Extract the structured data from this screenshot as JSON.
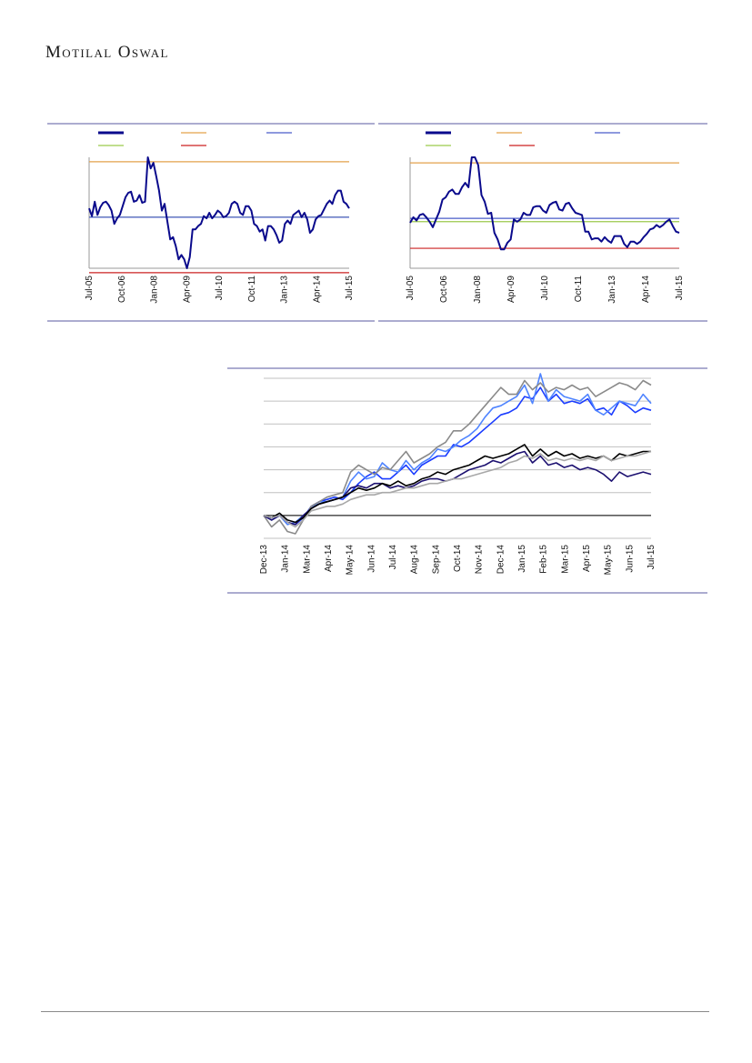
{
  "header": {
    "brand": "Motilal Oswal"
  },
  "colors": {
    "navy": "#0a0a8c",
    "orange": "#e3a24b",
    "blue_line": "#4a5cc9",
    "green": "#9bc94b",
    "red": "#cc2222",
    "rule": "#5a5aa0",
    "black": "#000000",
    "dark_navy": "#1c1070",
    "bright_blue": "#1a3cff",
    "light_blue": "#4f84ff",
    "gray": "#8a8a8a",
    "light_gray": "#a8a8a8",
    "grid": "#c0c0c0"
  },
  "chart_data": [
    {
      "type": "line",
      "x_ticks": [
        "Jul-05",
        "Oct-06",
        "Jan-08",
        "Apr-09",
        "Jul-10",
        "Oct-11",
        "Jan-13",
        "Apr-14",
        "Jul-15"
      ],
      "ylim": [
        0,
        100
      ],
      "legend": [
        {
          "color_key": "navy",
          "style": "thick"
        },
        {
          "color_key": "orange",
          "style": "thin"
        },
        {
          "color_key": "blue_line",
          "style": "thin"
        },
        {
          "color_key": "green",
          "style": "thin"
        },
        {
          "color_key": "red",
          "style": "thin"
        }
      ],
      "reference_lines": [
        {
          "color_key": "orange",
          "value": 96
        },
        {
          "color_key": "green",
          "value": 46
        },
        {
          "color_key": "blue_line",
          "value": 46
        },
        {
          "color_key": "red",
          "value": -4
        }
      ],
      "series": [
        {
          "color_key": "navy",
          "values": [
            54,
            47,
            60,
            48,
            55,
            59,
            60,
            57,
            52,
            40,
            45,
            48,
            56,
            64,
            68,
            69,
            60,
            61,
            66,
            59,
            60,
            100,
            90,
            95,
            83,
            70,
            52,
            58,
            42,
            26,
            28,
            20,
            8,
            12,
            8,
            0,
            10,
            35,
            35,
            38,
            40,
            47,
            45,
            50,
            45,
            48,
            52,
            50,
            46,
            47,
            50,
            58,
            60,
            58,
            50,
            48,
            56,
            56,
            52,
            40,
            38,
            33,
            35,
            25,
            38,
            38,
            35,
            30,
            23,
            25,
            40,
            43,
            40,
            48,
            50,
            52,
            46,
            50,
            44,
            32,
            35,
            44,
            47,
            48,
            53,
            58,
            61,
            58,
            66,
            70,
            70,
            60,
            58,
            54
          ]
        }
      ]
    },
    {
      "type": "line",
      "x_ticks": [
        "Jul-05",
        "Oct-06",
        "Jan-08",
        "Apr-09",
        "Jul-10",
        "Oct-11",
        "Jan-13",
        "Apr-14",
        "Jul-15"
      ],
      "ylim": [
        0,
        100
      ],
      "legend": [
        {
          "color_key": "navy",
          "style": "thick"
        },
        {
          "color_key": "orange",
          "style": "thin"
        },
        {
          "color_key": "blue_line",
          "style": "thin"
        },
        {
          "color_key": "green",
          "style": "thin"
        },
        {
          "color_key": "red",
          "style": "thin"
        }
      ],
      "reference_lines": [
        {
          "color_key": "orange",
          "value": 95
        },
        {
          "color_key": "blue_line",
          "value": 45
        },
        {
          "color_key": "green",
          "value": 42
        },
        {
          "color_key": "red",
          "value": 18
        }
      ],
      "series": [
        {
          "color_key": "navy",
          "values": [
            41,
            46,
            43,
            48,
            49,
            46,
            42,
            37,
            44,
            51,
            62,
            64,
            69,
            71,
            67,
            67,
            73,
            77,
            73,
            100,
            100,
            93,
            66,
            60,
            49,
            50,
            32,
            26,
            17,
            17,
            23,
            26,
            44,
            42,
            44,
            50,
            48,
            48,
            55,
            56,
            56,
            52,
            50,
            57,
            59,
            60,
            53,
            52,
            58,
            59,
            54,
            50,
            49,
            48,
            33,
            33,
            26,
            27,
            27,
            24,
            28,
            25,
            23,
            29,
            29,
            29,
            22,
            19,
            24,
            24,
            22,
            24,
            28,
            31,
            35,
            36,
            39,
            37,
            39,
            42,
            44,
            38,
            33,
            32
          ]
        }
      ]
    },
    {
      "type": "line",
      "x_ticks": [
        "Dec-13",
        "Jan-14",
        "Mar-14",
        "Apr-14",
        "May-14",
        "Jun-14",
        "Jul-14",
        "Aug-14",
        "Sep-14",
        "Oct-14",
        "Nov-14",
        "Dec-14",
        "Jan-15",
        "Feb-15",
        "Mar-15",
        "Apr-15",
        "May-15",
        "Jun-15",
        "Jul-15"
      ],
      "ylim": [
        90,
        160
      ],
      "grid": true,
      "baseline_value": 100,
      "series": [
        {
          "color_key": "bright_blue",
          "values": [
            100,
            99,
            100,
            97,
            96,
            99,
            104,
            106,
            107,
            108,
            107,
            110,
            114,
            117,
            119,
            116,
            116,
            119,
            122,
            118,
            122,
            124,
            126,
            126,
            131,
            130,
            132,
            135,
            138,
            141,
            144,
            145,
            147,
            152,
            151,
            156,
            150,
            153,
            149,
            150,
            149,
            151,
            146,
            147,
            144,
            150,
            148,
            145,
            147,
            146
          ]
        },
        {
          "color_key": "light_blue",
          "values": [
            100,
            98,
            100,
            96,
            97,
            100,
            103,
            106,
            106,
            107,
            108,
            115,
            119,
            116,
            117,
            123,
            120,
            119,
            124,
            120,
            123,
            125,
            129,
            128,
            130,
            133,
            135,
            138,
            143,
            147,
            148,
            150,
            152,
            157,
            149,
            162,
            150,
            155,
            152,
            151,
            150,
            153,
            146,
            144,
            147,
            150,
            149,
            148,
            153,
            149
          ]
        },
        {
          "color_key": "gray",
          "values": [
            100,
            95,
            98,
            93,
            92,
            98,
            104,
            106,
            108,
            109,
            110,
            119,
            122,
            120,
            118,
            121,
            120,
            124,
            128,
            123,
            125,
            127,
            130,
            132,
            137,
            137,
            140,
            144,
            148,
            152,
            156,
            153,
            153,
            159,
            155,
            158,
            154,
            156,
            155,
            157,
            155,
            156,
            152,
            154,
            156,
            158,
            157,
            155,
            159,
            157
          ]
        },
        {
          "color_key": "dark_navy",
          "values": [
            100,
            98,
            100,
            97,
            96,
            100,
            103,
            105,
            106,
            107,
            108,
            112,
            113,
            112,
            114,
            114,
            112,
            113,
            112,
            113,
            115,
            116,
            116,
            115,
            116,
            118,
            120,
            121,
            122,
            124,
            123,
            125,
            127,
            128,
            123,
            126,
            122,
            123,
            121,
            122,
            120,
            121,
            120,
            118,
            115,
            119,
            117,
            118,
            119,
            118
          ]
        },
        {
          "color_key": "black",
          "values": [
            100,
            99,
            101,
            98,
            97,
            99,
            103,
            105,
            106,
            107,
            108,
            110,
            112,
            111,
            112,
            114,
            113,
            115,
            113,
            114,
            116,
            117,
            119,
            118,
            120,
            121,
            122,
            124,
            126,
            125,
            126,
            127,
            129,
            131,
            126,
            129,
            126,
            128,
            126,
            127,
            125,
            126,
            125,
            126,
            124,
            127,
            126,
            127,
            128,
            128
          ]
        },
        {
          "color_key": "light_gray",
          "values": [
            100,
            99,
            100,
            97,
            95,
            98,
            102,
            103,
            104,
            104,
            105,
            107,
            108,
            109,
            109,
            110,
            110,
            111,
            112,
            112,
            113,
            114,
            114,
            115,
            116,
            116,
            117,
            118,
            119,
            120,
            121,
            123,
            124,
            126,
            125,
            127,
            124,
            125,
            124,
            125,
            124,
            125,
            124,
            126,
            124,
            125,
            126,
            126,
            127,
            128
          ]
        }
      ]
    }
  ]
}
